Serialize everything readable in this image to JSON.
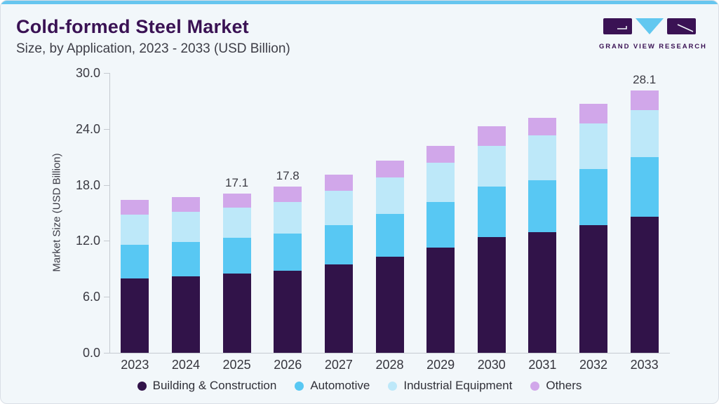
{
  "header": {
    "title": "Cold-formed Steel Market",
    "subtitle": "Size, by Application, 2023 - 2033 (USD Billion)",
    "logo_text": "GRAND VIEW RESEARCH"
  },
  "colors": {
    "accent_bar": "#67c6ef",
    "title_purple": "#3a1254",
    "logo_triangle": "#62c8f0",
    "axis_gray": "#c5cad0",
    "card_background": "#f2f7fa"
  },
  "chart_data": {
    "type": "bar",
    "stacked": true,
    "title": "Cold-formed Steel Market Size, by Application, 2023 - 2033 (USD Billion)",
    "categories": [
      "2023",
      "2024",
      "2025",
      "2026",
      "2027",
      "2028",
      "2029",
      "2030",
      "2031",
      "2032",
      "2033"
    ],
    "series": [
      {
        "name": "Building & Construction",
        "color": "#311349",
        "values": [
          8.0,
          8.2,
          8.5,
          8.8,
          9.5,
          10.3,
          11.3,
          12.4,
          12.9,
          13.7,
          14.6
        ]
      },
      {
        "name": "Automotive",
        "color": "#58c8f3",
        "values": [
          3.6,
          3.7,
          3.8,
          4.0,
          4.2,
          4.6,
          4.9,
          5.4,
          5.6,
          6.0,
          6.4
        ]
      },
      {
        "name": "Industrial Equipment",
        "color": "#bde8f9",
        "values": [
          3.2,
          3.2,
          3.3,
          3.4,
          3.7,
          3.9,
          4.2,
          4.4,
          4.8,
          4.9,
          5.0
        ]
      },
      {
        "name": "Others",
        "color": "#d1a7ea",
        "values": [
          1.6,
          1.6,
          1.5,
          1.6,
          1.7,
          1.8,
          1.8,
          2.1,
          1.9,
          2.1,
          2.1
        ]
      }
    ],
    "bar_total_labels": [
      "",
      "",
      "17.1",
      "17.8",
      "",
      "",
      "",
      "",
      "",
      "",
      "28.1"
    ],
    "totals": [
      16.4,
      16.7,
      17.1,
      17.8,
      19.1,
      20.6,
      22.2,
      24.3,
      25.2,
      26.7,
      28.1
    ],
    "ylabel": "Market Size (USD Billion)",
    "yticks": [
      "0.0",
      "6.0",
      "12.0",
      "18.0",
      "24.0",
      "30.0"
    ],
    "ytick_values": [
      0,
      6,
      12,
      18,
      24,
      30
    ],
    "ylim": [
      0,
      30
    ],
    "legend_position": "bottom",
    "grid": false
  }
}
